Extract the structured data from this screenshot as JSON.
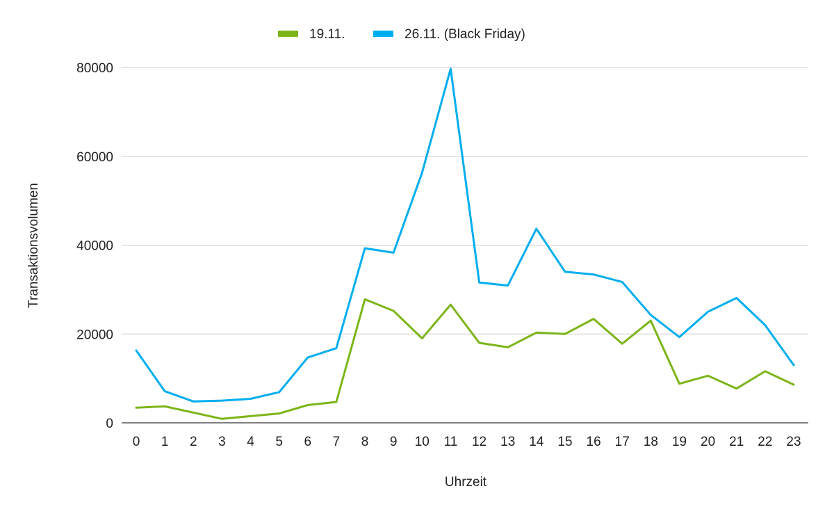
{
  "chart_data": {
    "type": "line",
    "title": "",
    "xlabel": "Uhrzeit",
    "ylabel": "Transaktionsvolumen",
    "ylim": [
      0,
      80000
    ],
    "y_ticks": [
      "0",
      "20000",
      "40000",
      "60000",
      "80000"
    ],
    "y_tick_values": [
      0,
      20000,
      40000,
      60000,
      80000
    ],
    "x": [
      "0",
      "1",
      "2",
      "3",
      "4",
      "5",
      "6",
      "7",
      "8",
      "9",
      "10",
      "11",
      "12",
      "13",
      "14",
      "15",
      "16",
      "17",
      "18",
      "19",
      "20",
      "21",
      "22",
      "23"
    ],
    "grid": true,
    "legend_position": "top",
    "series": [
      {
        "name": "19.11.",
        "color": "#7cb518",
        "values": [
          3400,
          3700,
          2300,
          900,
          1500,
          2100,
          4000,
          4700,
          27800,
          25200,
          19000,
          26600,
          18000,
          17000,
          20300,
          20000,
          23400,
          17800,
          23000,
          8800,
          10600,
          7700,
          11600,
          8600
        ]
      },
      {
        "name": "26.11. (Black Friday)",
        "color": "#00aeef",
        "values": [
          16300,
          7100,
          4800,
          5000,
          5400,
          6900,
          14700,
          16800,
          39300,
          38300,
          56300,
          79700,
          31600,
          30900,
          43700,
          34000,
          33400,
          31700,
          24300,
          19300,
          25000,
          28100,
          22000,
          13000
        ]
      }
    ]
  }
}
